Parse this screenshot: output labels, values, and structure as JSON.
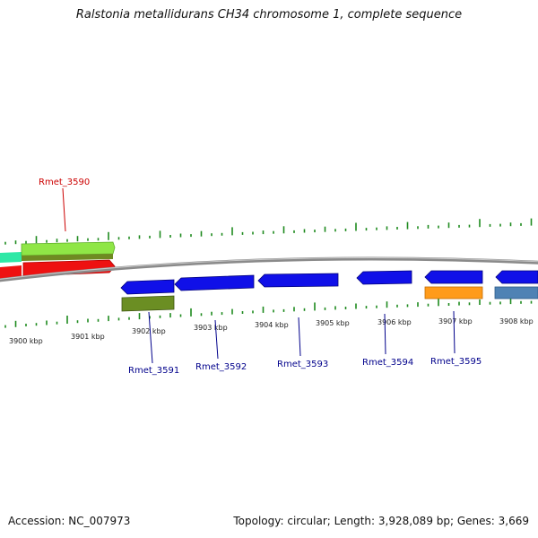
{
  "title": "Ralstonia metallidurans CH34 chromosome 1, complete sequence",
  "footer": {
    "accession": "Accession: NC_007973",
    "topology": "Topology: circular; Length: 3,928,089 bp; Genes: 3,669"
  },
  "colors": {
    "backbone": "#8a8a8a",
    "gc_ticks": "#1e8a1e",
    "label_top": "#cc0000",
    "label_bottom": "#00008b"
  },
  "kbp_ticks": [
    "3900 kbp",
    "3901 kbp",
    "3902 kbp",
    "3903 kbp",
    "3904 kbp",
    "3905 kbp",
    "3906 kbp",
    "3907 kbp",
    "3908 kbp"
  ],
  "gene_labels": {
    "top": [
      "Rmet_3590"
    ],
    "bottom": [
      "Rmet_3591",
      "Rmet_3592",
      "Rmet_3593",
      "Rmet_3594",
      "Rmet_3595"
    ]
  }
}
